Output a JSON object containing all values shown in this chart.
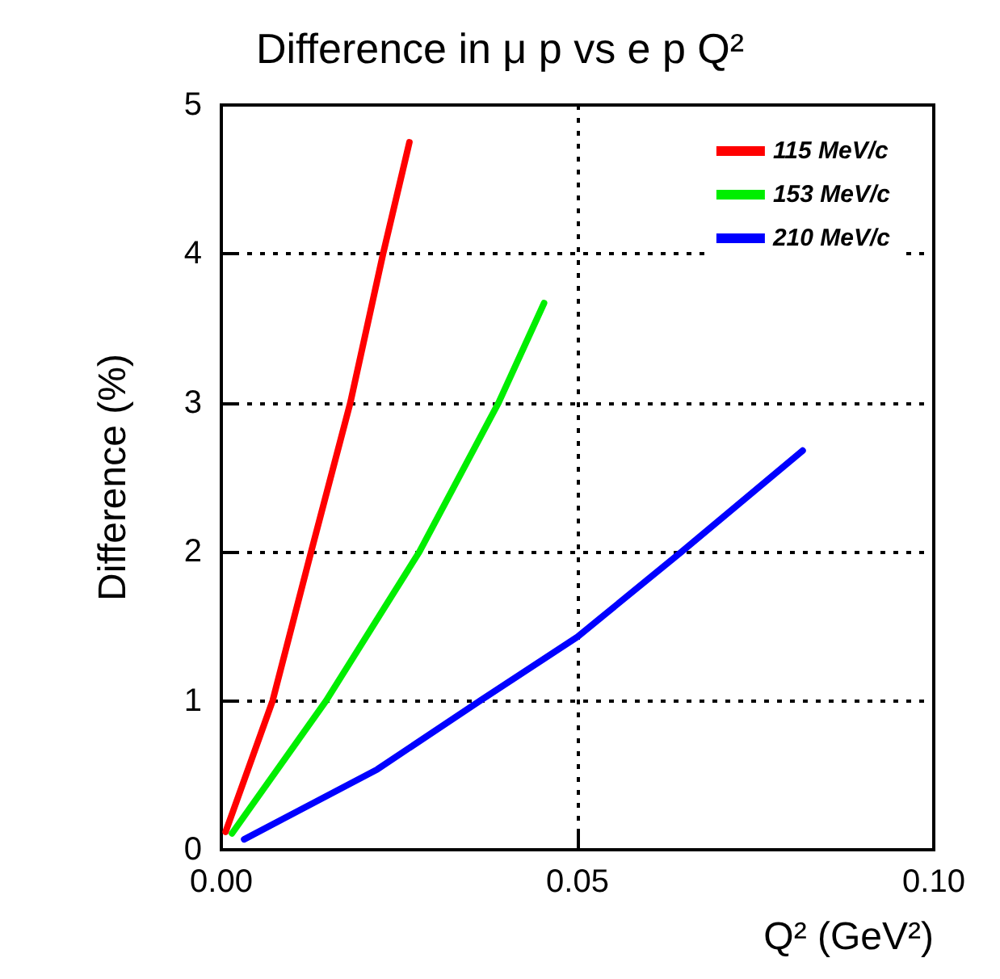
{
  "chart_data": {
    "type": "line",
    "title": "Difference in μ p vs e p Q²",
    "xlabel": "Q² (GeV²)",
    "ylabel": "Difference (%)",
    "xlim": [
      0,
      0.1
    ],
    "xticks": [
      {
        "value": 0,
        "label": "0.00"
      },
      {
        "value": 0.05,
        "label": "0.05"
      },
      {
        "value": 0.1,
        "label": "0.10"
      }
    ],
    "ylim": [
      0,
      5
    ],
    "yticks": [
      0,
      1,
      2,
      3,
      4,
      5
    ],
    "grid": true,
    "legend": "top right",
    "marker": "none",
    "line_style": "solid",
    "series": [
      {
        "name": "115 MeV/c",
        "color": "#ff0000",
        "x": [
          0.0006,
          0.0072,
          0.0126,
          0.0181,
          0.0227,
          0.0264
        ],
        "values": [
          0.12,
          1,
          2,
          3,
          4,
          4.75
        ]
      },
      {
        "name": "153 MeV/c",
        "color": "#00ee00",
        "x": [
          0.0015,
          0.0147,
          0.0278,
          0.0389,
          0.0453
        ],
        "values": [
          0.11,
          1,
          2,
          3,
          3.67
        ]
      },
      {
        "name": "210 MeV/c",
        "color": "#0000ff",
        "x": [
          0.0032,
          0.0219,
          0.0363,
          0.05,
          0.0646,
          0.0816
        ],
        "values": [
          0.07,
          0.54,
          1,
          1.43,
          2,
          2.68
        ]
      }
    ]
  }
}
